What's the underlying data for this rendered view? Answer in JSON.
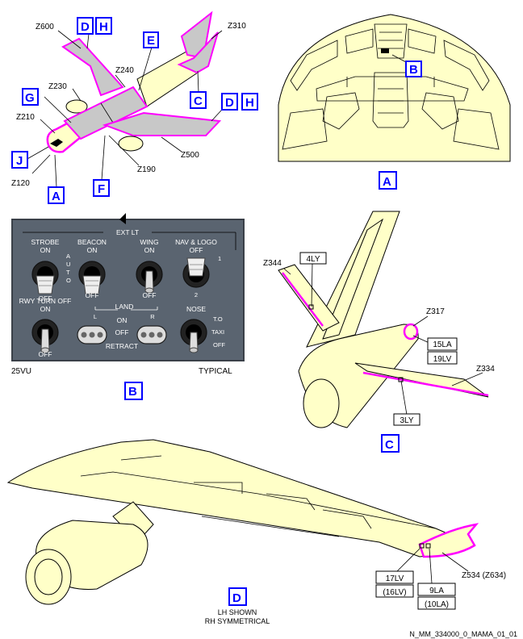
{
  "colors": {
    "highlight": "#ff00ff",
    "callout": "#0000ff",
    "aircraft": "#ffffc8",
    "panel": "#5a6470",
    "zone_grey": "#c8c8c8"
  },
  "view_overview": {
    "zones": {
      "z600": "Z600",
      "z310": "Z310",
      "z240": "Z240",
      "z230": "Z230",
      "z210": "Z210",
      "z120": "Z120",
      "z190": "Z190",
      "z500": "Z500"
    },
    "callouts": {
      "d1": "D",
      "h1": "H",
      "e": "E",
      "g": "G",
      "c": "C",
      "d2": "D",
      "h2": "H",
      "j": "J",
      "a": "A",
      "f": "F"
    }
  },
  "view_a": {
    "label": "A",
    "callout_b": "B"
  },
  "view_b": {
    "label": "B",
    "panel_title": "EXT LT",
    "switches": {
      "strobe": "STROBE",
      "beacon": "BEACON",
      "wing": "WING",
      "nav_logo": "NAV & LOGO",
      "rwy_turn_off": "RWY TURN OFF",
      "land": "LAND",
      "nose": "NOSE"
    },
    "positions": {
      "on": "ON",
      "off": "OFF",
      "auto_a": "A",
      "auto_u": "U",
      "auto_t": "T",
      "auto_o": "O",
      "one": "1",
      "two": "2",
      "l": "L",
      "r": "R",
      "retract": "RETRACT",
      "to": "T.O",
      "taxi": "TAXI"
    },
    "panel_ref": "25VU",
    "note": "TYPICAL"
  },
  "view_c": {
    "label": "C",
    "zones": {
      "z344": "Z344",
      "z317": "Z317",
      "z334": "Z334"
    },
    "items": {
      "i4ly": "4LY",
      "i15la": "15LA",
      "i19lv": "19LV",
      "i3ly": "3LY"
    }
  },
  "view_d": {
    "label": "D",
    "caption_1": "LH SHOWN",
    "caption_2": "RH SYMMETRICAL",
    "items": {
      "i17lv": "17LV",
      "i16lv": "(16LV)",
      "i9la": "9LA",
      "i10la": "(10LA)"
    },
    "zone": "Z534  (Z634)"
  },
  "figure_ref": "N_MM_334000_0_MAMA_01_01"
}
